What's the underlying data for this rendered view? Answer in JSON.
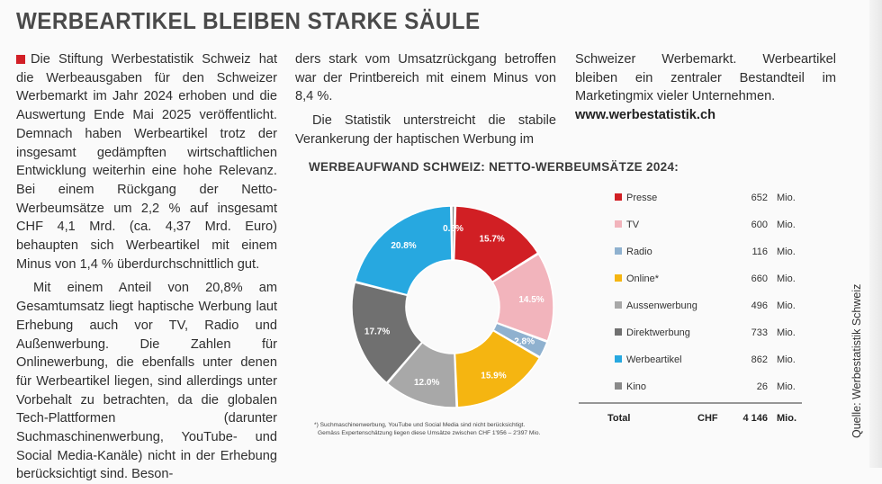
{
  "headline": "WERBEARTIKEL BLEIBEN STARKE SÄULE",
  "col1": {
    "p1": "Die Stiftung Werbestatistik Schweiz hat die Werbeausgaben für den Schweizer Werbemarkt im Jahr 2024 erhoben und die Auswertung Ende Mai 2025 veröffentlicht. Demnach haben Werbeartikel trotz der insgesamt gedämpften wirtschaftlichen Entwicklung weiterhin eine hohe Relevanz. Bei einem Rückgang der Netto-Werbeumsätze um 2,2 % auf insgesamt CHF 4,1 Mrd. (ca. 4,37 Mrd. Euro) behaupten sich Werbeartikel mit einem Minus von 1,4 % überdurchschnittlich gut.",
    "p2": "Mit einem Anteil von 20,8% am Gesamtumsatz liegt haptische Werbung laut Erhebung auch vor TV, Radio und Außenwerbung. Die Zahlen für Onlinewerbung, die ebenfalls unter denen für Werbeartikel liegen, sind allerdings unter Vorbehalt zu betrachten, da die globalen Tech-Plattformen (darunter Suchmaschinenwerbung, YouTube- und Social Media-Kanäle) nicht in der Erhebung berücksichtigt sind. Beson-"
  },
  "col2": {
    "p1": "ders stark vom Umsatzrückgang betroffen war der Printbereich mit einem Minus von 8,4 %.",
    "p2": "Die Statistik unterstreicht die stabile Verankerung der haptischen Werbung im"
  },
  "col3": {
    "p1": "Schweizer Werbemarkt. Werbeartikel bleiben ein zentraler Bestandteil im Marketingmix vieler Unternehmen.",
    "url": "www.werbestatistik.ch"
  },
  "side_caption": "Quelle: Werbestatistik Schweiz",
  "chart_data": {
    "type": "pie",
    "title": "WERBEAUFWAND SCHWEIZ: NETTO-WERBEUMSÄTZE 2024:",
    "unit": "Mio.",
    "categories": [
      "Presse",
      "TV",
      "Radio",
      "Online*",
      "Aussenwerbung",
      "Direktwerbung",
      "Werbeartikel",
      "Kino"
    ],
    "values": [
      652,
      600,
      116,
      660,
      496,
      733,
      862,
      26
    ],
    "value_labels": [
      "652",
      "600",
      "116",
      "660",
      "496",
      "733",
      "862",
      "26"
    ],
    "percent_labels": [
      "15.7%",
      "14.5%",
      "2.8%",
      "15.9%",
      "12.0%",
      "17.7%",
      "20.8%",
      "0.6%"
    ],
    "colors": [
      "#d11f24",
      "#f2b4bc",
      "#8fb1cf",
      "#f5b511",
      "#a8a8a8",
      "#707070",
      "#27a8e0",
      "#8a8a8a"
    ],
    "total": {
      "label": "Total",
      "currency": "CHF",
      "value": "4 146",
      "unit": "Mio."
    },
    "footnote_1": "*) Suchmaschinenwerbung, YouTube und Social Media sind nicht berücksichtigt.",
    "footnote_2": "Gemäss Expertenschätzung liegen diese Umsätze zwischen CHF 1'956 – 2'397 Mio."
  }
}
